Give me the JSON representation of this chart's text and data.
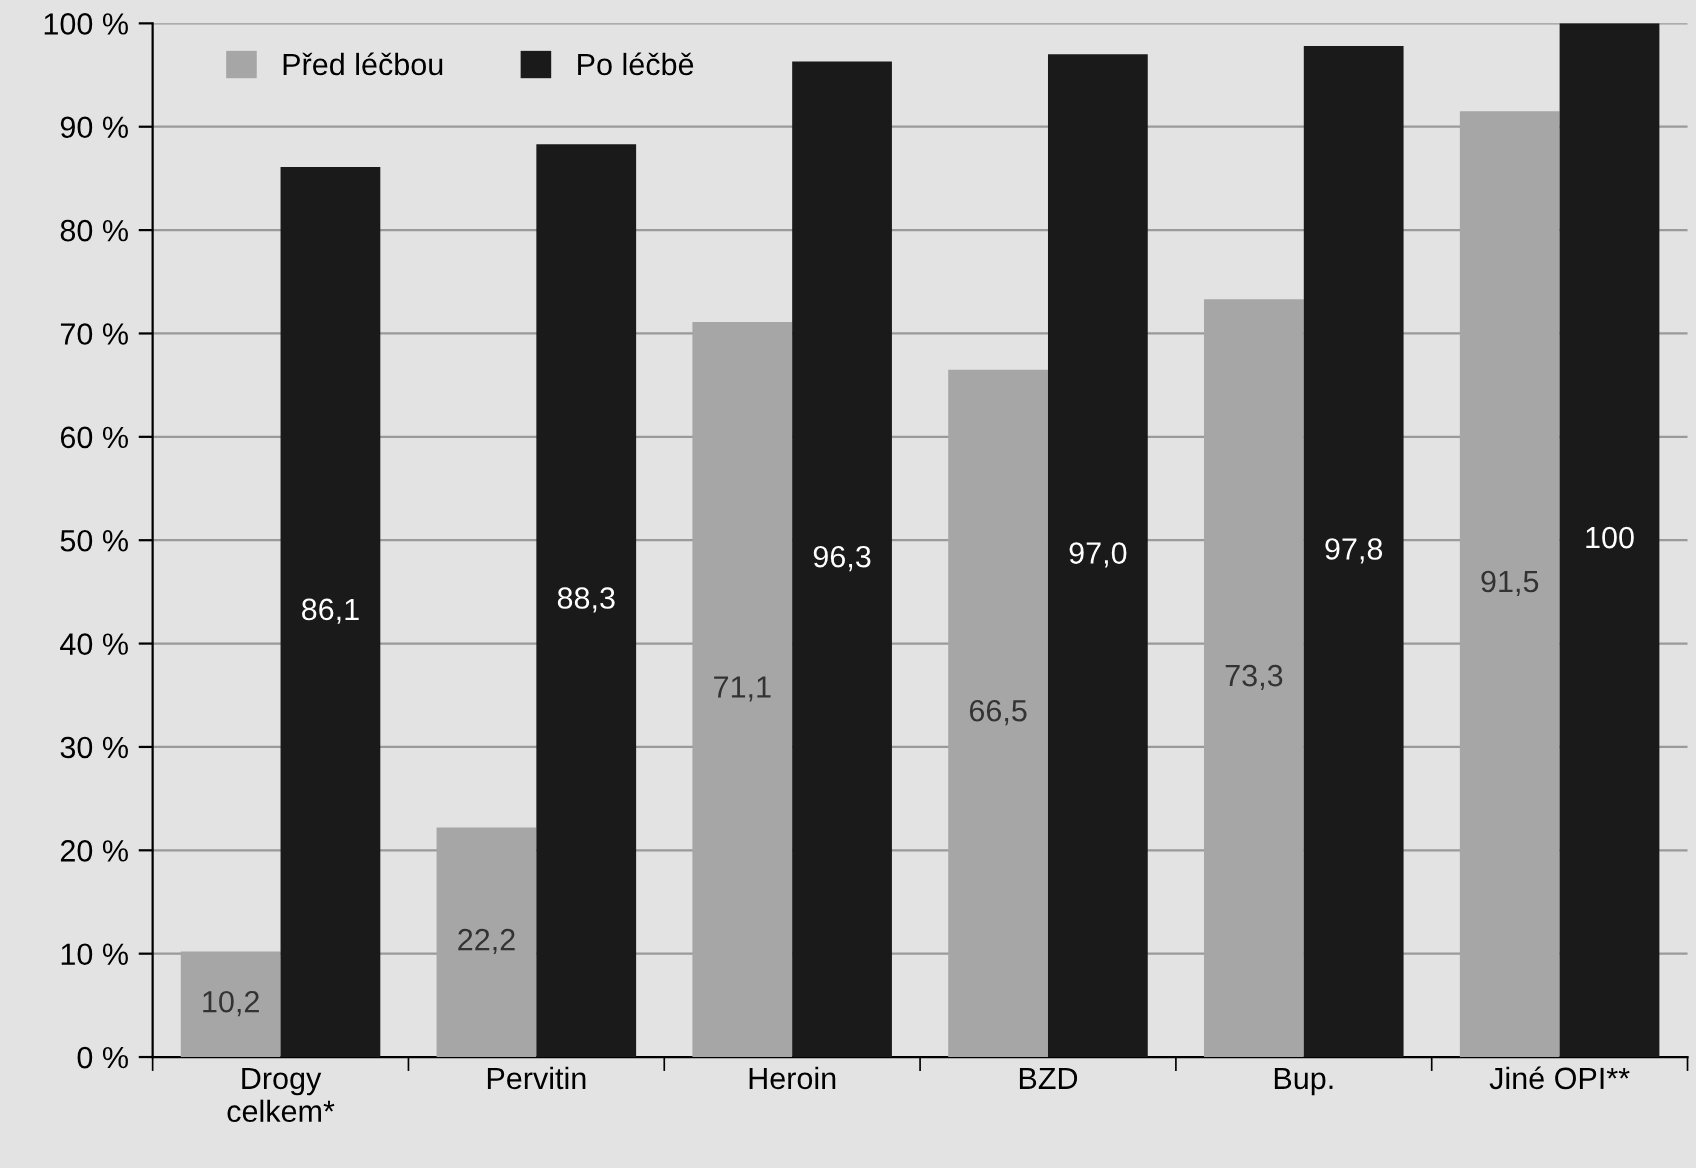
{
  "chart_data": {
    "type": "bar",
    "categories": [
      "Drogy\ncelkem*",
      "Pervitin",
      "Heroin",
      "BZD",
      "Bup.",
      "Jiné OPI**"
    ],
    "series": [
      {
        "name": "Před léčbou",
        "color": "#a6a6a6",
        "values": [
          10.2,
          22.2,
          71.1,
          66.5,
          73.3,
          91.5
        ],
        "value_labels": [
          "10,2",
          "22,2",
          "71,1",
          "66,5",
          "73,3",
          "91,5"
        ]
      },
      {
        "name": "Po léčbě",
        "color": "#1a1a1a",
        "values": [
          86.1,
          88.3,
          96.3,
          97.0,
          97.8,
          100
        ],
        "value_labels": [
          "86,1",
          "88,3",
          "96,3",
          "97,0",
          "97,8",
          "100"
        ]
      }
    ],
    "ylim": [
      0,
      100
    ],
    "yticks": [
      {
        "value": 0,
        "label": "0 %"
      },
      {
        "value": 10,
        "label": "10 %"
      },
      {
        "value": 20,
        "label": "20 %"
      },
      {
        "value": 30,
        "label": "30 %"
      },
      {
        "value": 40,
        "label": "40 %"
      },
      {
        "value": 50,
        "label": "50 %"
      },
      {
        "value": 60,
        "label": "60 %"
      },
      {
        "value": 70,
        "label": "70 %"
      },
      {
        "value": 80,
        "label": "80 %"
      },
      {
        "value": 90,
        "label": "90 %"
      },
      {
        "value": 100,
        "label": "100 %"
      }
    ],
    "grid": "y",
    "legend": "top left"
  }
}
